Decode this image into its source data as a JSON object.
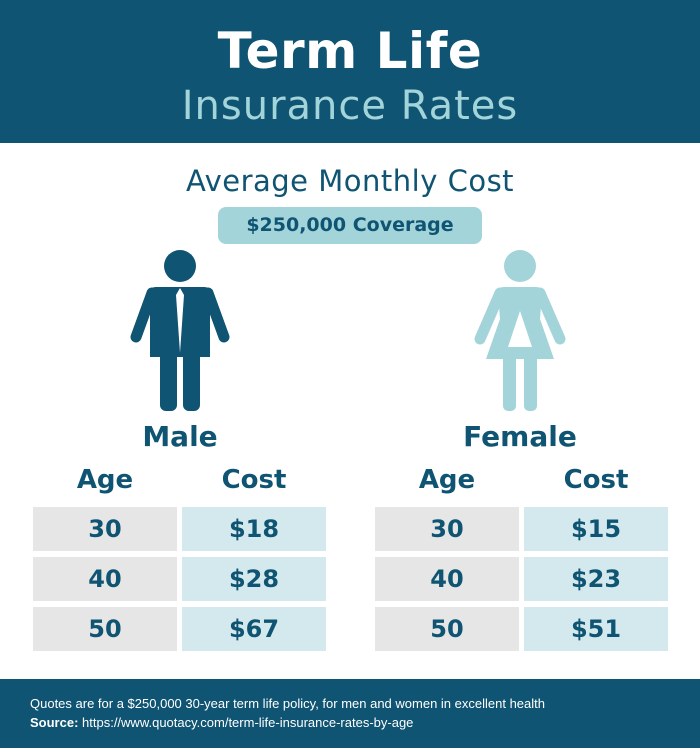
{
  "header": {
    "title_line1": "Term Life",
    "title_line2": "Insurance Rates"
  },
  "subtitle": "Average Monthly Cost",
  "coverage_badge": "$250,000 Coverage",
  "male": {
    "label": "Male",
    "age_header": "Age",
    "cost_header": "Cost",
    "rows": [
      {
        "age": "30",
        "cost": "$18"
      },
      {
        "age": "40",
        "cost": "$28"
      },
      {
        "age": "50",
        "cost": "$67"
      }
    ]
  },
  "female": {
    "label": "Female",
    "age_header": "Age",
    "cost_header": "Cost",
    "rows": [
      {
        "age": "30",
        "cost": "$15"
      },
      {
        "age": "40",
        "cost": "$23"
      },
      {
        "age": "50",
        "cost": "$51"
      }
    ]
  },
  "footer": {
    "note": "Quotes are for a $250,000 30-year term life policy, for men and women in excellent health",
    "source_label": "Source:",
    "source_url": " https://www.quotacy.com/term-life-insurance-rates-by-age"
  },
  "colors": {
    "navy": "#0f5472",
    "light_teal": "#a3d4da",
    "gray_cell": "#e6e6e6",
    "teal_cell": "#d4e9ed"
  },
  "icons": {
    "male": "male-person-icon",
    "female": "female-person-icon"
  }
}
